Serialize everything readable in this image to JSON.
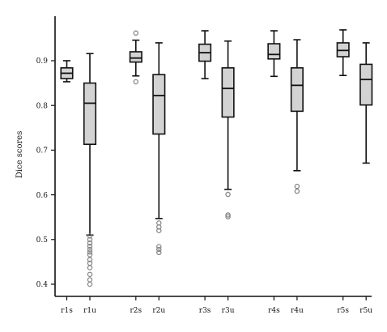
{
  "chart_data": {
    "type": "box",
    "title": "",
    "xlabel": "",
    "ylabel": "Dice scores",
    "ylim": [
      0.375,
      1.0
    ],
    "yticks": [
      "0.4",
      "0.5",
      "0.6",
      "0.7",
      "0.8",
      "0.9"
    ],
    "grid": false,
    "legend": "none",
    "colors": {
      "box_fill": "#d3d3d3",
      "line": "#111111",
      "outlier": "#888888"
    },
    "categories": [
      "r1s",
      "r1u",
      "r2s",
      "r2u",
      "r3s",
      "r3u",
      "r4s",
      "r4u",
      "r5s",
      "r5u"
    ],
    "boxes": [
      {
        "label": "r1s",
        "whisker_low": 0.853,
        "q1": 0.86,
        "median": 0.872,
        "q3": 0.884,
        "whisker_high": 0.9,
        "outliers": []
      },
      {
        "label": "r1u",
        "whisker_low": 0.51,
        "q1": 0.713,
        "median": 0.805,
        "q3": 0.85,
        "whisker_high": 0.916,
        "outliers": [
          0.508,
          0.5,
          0.492,
          0.485,
          0.478,
          0.472,
          0.466,
          0.455,
          0.447,
          0.437,
          0.422,
          0.41,
          0.4
        ]
      },
      {
        "label": "r2s",
        "whisker_low": 0.866,
        "q1": 0.897,
        "median": 0.906,
        "q3": 0.92,
        "whisker_high": 0.946,
        "outliers": [
          0.962,
          0.853
        ]
      },
      {
        "label": "r2u",
        "whisker_low": 0.547,
        "q1": 0.736,
        "median": 0.822,
        "q3": 0.869,
        "whisker_high": 0.94,
        "outliers": [
          0.537,
          0.528,
          0.52,
          0.484,
          0.478,
          0.471
        ]
      },
      {
        "label": "r3s",
        "whisker_low": 0.86,
        "q1": 0.899,
        "median": 0.918,
        "q3": 0.937,
        "whisker_high": 0.967,
        "outliers": []
      },
      {
        "label": "r3u",
        "whisker_low": 0.612,
        "q1": 0.774,
        "median": 0.838,
        "q3": 0.884,
        "whisker_high": 0.944,
        "outliers": [
          0.601,
          0.555,
          0.551
        ]
      },
      {
        "label": "r4s",
        "whisker_low": 0.865,
        "q1": 0.904,
        "median": 0.914,
        "q3": 0.938,
        "whisker_high": 0.967,
        "outliers": []
      },
      {
        "label": "r4u",
        "whisker_low": 0.654,
        "q1": 0.787,
        "median": 0.845,
        "q3": 0.884,
        "whisker_high": 0.947,
        "outliers": [
          0.619,
          0.608
        ]
      },
      {
        "label": "r5s",
        "whisker_low": 0.867,
        "q1": 0.909,
        "median": 0.923,
        "q3": 0.94,
        "whisker_high": 0.969,
        "outliers": []
      },
      {
        "label": "r5u",
        "whisker_low": 0.671,
        "q1": 0.801,
        "median": 0.858,
        "q3": 0.892,
        "whisker_high": 0.94,
        "outliers": []
      }
    ]
  }
}
